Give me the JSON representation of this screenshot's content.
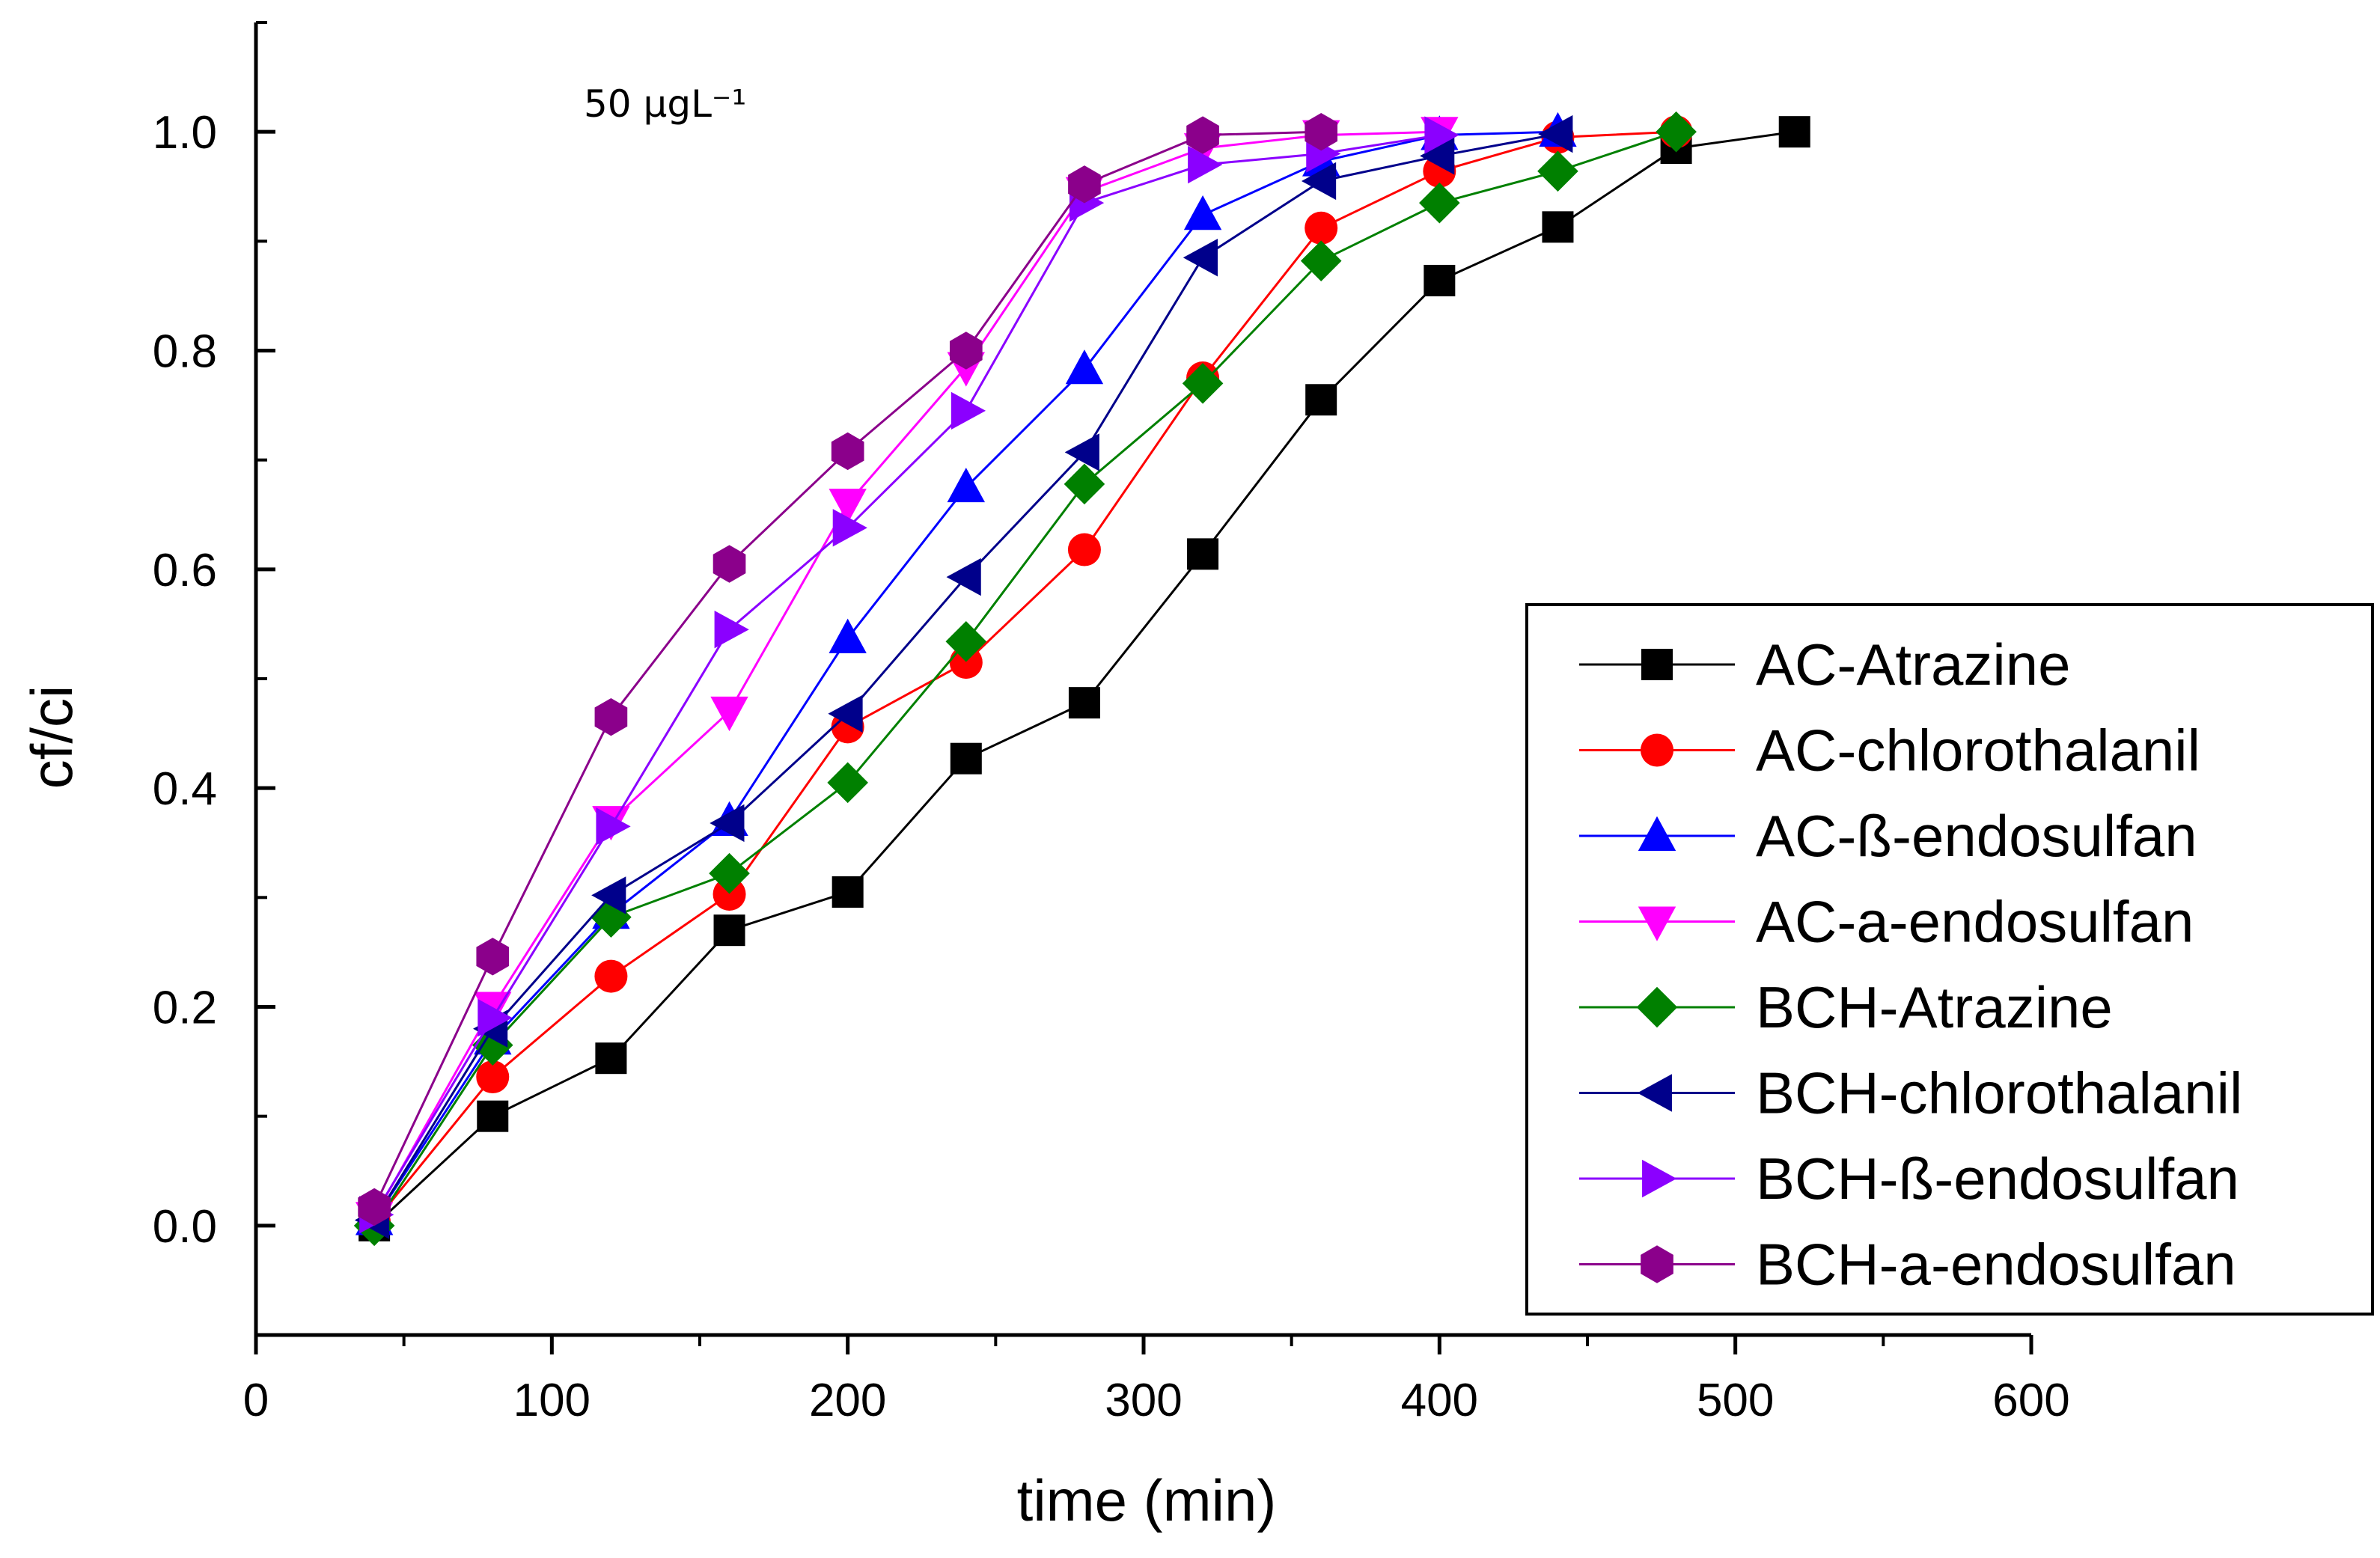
{
  "chart_data": {
    "type": "line",
    "title": "",
    "xlabel": "time (min)",
    "ylabel": "cf/ci",
    "xlim": [
      0,
      600
    ],
    "ylim": [
      -0.1,
      1.1
    ],
    "xticks": [
      0,
      100,
      200,
      300,
      400,
      500,
      600
    ],
    "xtick_labels": [
      "0",
      "100",
      "200",
      "300",
      "400",
      "500",
      "600"
    ],
    "yticks": [
      0.0,
      0.2,
      0.4,
      0.6,
      0.8,
      1.0
    ],
    "ytick_labels": [
      "0.0",
      "0.2",
      "0.4",
      "0.6",
      "0.8",
      "1.0"
    ],
    "grid": false,
    "legend_position": "bottom-right",
    "annotation": "50 μgL⁻¹",
    "series": [
      {
        "name": "AC-Atrazine",
        "color": "#000000",
        "marker": "square",
        "x": [
          40,
          80,
          120,
          160,
          200,
          240,
          280,
          320,
          360,
          400,
          440,
          480,
          520
        ],
        "y": [
          0.0,
          0.1,
          0.153,
          0.27,
          0.305,
          0.427,
          0.478,
          0.614,
          0.755,
          0.864,
          0.913,
          0.985,
          1.0
        ]
      },
      {
        "name": "AC-chlorothalanil",
        "color": "#ff0000",
        "marker": "circle",
        "x": [
          40,
          80,
          120,
          160,
          200,
          240,
          280,
          320,
          360,
          400,
          440,
          480
        ],
        "y": [
          0.003,
          0.136,
          0.228,
          0.303,
          0.456,
          0.515,
          0.618,
          0.775,
          0.912,
          0.964,
          0.995,
          1.0
        ]
      },
      {
        "name": "AC-ß-endosulfan",
        "color": "#0000ff",
        "marker": "triangle-up",
        "x": [
          40,
          80,
          120,
          160,
          200,
          240,
          280,
          320,
          360,
          400,
          440
        ],
        "y": [
          0.005,
          0.17,
          0.285,
          0.37,
          0.537,
          0.675,
          0.783,
          0.924,
          0.973,
          0.997,
          1.0
        ]
      },
      {
        "name": "AC-a-endosulfan",
        "color": "#ff00ff",
        "marker": "triangle-down",
        "x": [
          40,
          80,
          120,
          160,
          200,
          240,
          280,
          320,
          360,
          400
        ],
        "y": [
          0.008,
          0.2,
          0.37,
          0.47,
          0.66,
          0.785,
          0.945,
          0.985,
          0.997,
          1.0
        ]
      },
      {
        "name": "BCH-Atrazine",
        "color": "#008000",
        "marker": "diamond",
        "x": [
          40,
          80,
          120,
          160,
          200,
          240,
          280,
          320,
          360,
          400,
          440,
          480
        ],
        "y": [
          0.0,
          0.165,
          0.282,
          0.322,
          0.405,
          0.534,
          0.678,
          0.77,
          0.882,
          0.935,
          0.964,
          1.0
        ]
      },
      {
        "name": "BCH-chlorothalanil",
        "color": "#00008b",
        "marker": "triangle-left",
        "x": [
          40,
          80,
          120,
          160,
          200,
          240,
          280,
          320,
          360,
          400,
          440
        ],
        "y": [
          0.005,
          0.18,
          0.302,
          0.368,
          0.468,
          0.593,
          0.707,
          0.885,
          0.955,
          0.978,
          0.998
        ]
      },
      {
        "name": "BCH-ß-endosulfan",
        "color": "#8b00ff",
        "marker": "triangle-right",
        "x": [
          40,
          80,
          120,
          160,
          200,
          240,
          280,
          320,
          360,
          400
        ],
        "y": [
          0.01,
          0.19,
          0.365,
          0.545,
          0.638,
          0.745,
          0.935,
          0.97,
          0.98,
          0.997
        ]
      },
      {
        "name": "BCH-a-endosulfan",
        "color": "#8b008b",
        "marker": "hexagon",
        "x": [
          40,
          80,
          120,
          160,
          200,
          240,
          280,
          320,
          360
        ],
        "y": [
          0.017,
          0.246,
          0.465,
          0.605,
          0.708,
          0.8,
          0.952,
          0.997,
          1.0
        ]
      }
    ]
  }
}
